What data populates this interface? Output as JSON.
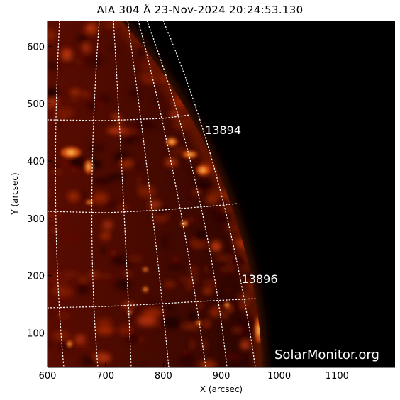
{
  "title": "AIA 304 Å 23-Nov-2024 20:24:53.130",
  "x_axis": {
    "label": "X (arcsec)",
    "range": [
      600,
      1200
    ],
    "ticks": [
      "600",
      "700",
      "800",
      "900",
      "1000",
      "1100"
    ],
    "tick_values": [
      600,
      700,
      800,
      900,
      1000,
      1100
    ]
  },
  "y_axis": {
    "label": "Y (arcsec)",
    "range": [
      40,
      645
    ],
    "ticks": [
      "100",
      "200",
      "300",
      "400",
      "500",
      "600"
    ],
    "tick_values": [
      100,
      200,
      300,
      400,
      500,
      600
    ]
  },
  "regions": [
    {
      "label": "13894",
      "x": 872,
      "y": 447
    },
    {
      "label": "13896",
      "x": 935,
      "y": 187
    }
  ],
  "watermark": "SolarMonitor.org",
  "colors": {
    "sky": "#000000",
    "disk_dark": "#2a0400",
    "disk_mid": "#8a1a02",
    "plage": "#ff6a10",
    "grid": "#ffffff"
  }
}
